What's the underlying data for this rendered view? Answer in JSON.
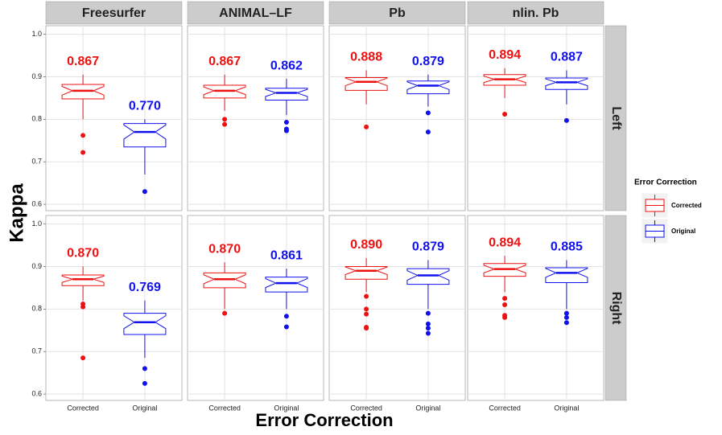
{
  "chart_data": {
    "type": "box",
    "x_label": "Error Correction",
    "y_label": "Kappa",
    "legend_title": "Error Correction",
    "categories": [
      "Corrected",
      "Original"
    ],
    "series": [
      {
        "name": "Corrected",
        "color": "#ee1111"
      },
      {
        "name": "Original",
        "color": "#1111ee"
      }
    ],
    "columns": [
      "Freesurfer",
      "ANIMAL–LF",
      "Pb",
      "nlin. Pb"
    ],
    "ylim": [
      0.585,
      1.02
    ],
    "yticks": [
      0.6,
      0.7,
      0.8,
      0.9,
      {
        "value": 1,
        "label": "1.0"
      }
    ],
    "grid": true,
    "rows": [
      {
        "name": "Left",
        "panels": [
          {
            "boxes": [
              {
                "low": 0.8,
                "q1": 0.848,
                "median": 0.867,
                "q3": 0.882,
                "high": 0.905,
                "outliers": [
                  0.762,
                  0.722
                ],
                "label": "0.867"
              },
              {
                "low": 0.67,
                "q1": 0.735,
                "median": 0.77,
                "q3": 0.79,
                "high": 0.8,
                "outliers": [
                  0.63
                ],
                "label": "0.770"
              }
            ]
          },
          {
            "boxes": [
              {
                "low": 0.82,
                "q1": 0.85,
                "median": 0.867,
                "q3": 0.88,
                "high": 0.905,
                "outliers": [
                  0.8,
                  0.788
                ],
                "label": "0.867"
              },
              {
                "low": 0.81,
                "q1": 0.845,
                "median": 0.862,
                "q3": 0.873,
                "high": 0.895,
                "outliers": [
                  0.793,
                  0.777,
                  0.773
                ],
                "label": "0.862"
              }
            ]
          },
          {
            "boxes": [
              {
                "low": 0.835,
                "q1": 0.868,
                "median": 0.888,
                "q3": 0.898,
                "high": 0.915,
                "outliers": [
                  0.782
                ],
                "label": "0.888"
              },
              {
                "low": 0.83,
                "q1": 0.86,
                "median": 0.879,
                "q3": 0.89,
                "high": 0.905,
                "outliers": [
                  0.815,
                  0.77
                ],
                "label": "0.879"
              }
            ]
          },
          {
            "boxes": [
              {
                "low": 0.85,
                "q1": 0.88,
                "median": 0.894,
                "q3": 0.905,
                "high": 0.92,
                "outliers": [
                  0.812
                ],
                "label": "0.894"
              },
              {
                "low": 0.835,
                "q1": 0.87,
                "median": 0.887,
                "q3": 0.897,
                "high": 0.915,
                "outliers": [
                  0.797
                ],
                "label": "0.887"
              }
            ]
          }
        ]
      },
      {
        "name": "Right",
        "panels": [
          {
            "boxes": [
              {
                "low": 0.82,
                "q1": 0.855,
                "median": 0.87,
                "q3": 0.88,
                "high": 0.9,
                "outliers": [
                  0.812,
                  0.805,
                  0.685
                ],
                "label": "0.870"
              },
              {
                "low": 0.685,
                "q1": 0.74,
                "median": 0.769,
                "q3": 0.79,
                "high": 0.82,
                "outliers": [
                  0.66,
                  0.625
                ],
                "label": "0.769"
              }
            ]
          },
          {
            "boxes": [
              {
                "low": 0.8,
                "q1": 0.85,
                "median": 0.87,
                "q3": 0.885,
                "high": 0.91,
                "outliers": [
                  0.79
                ],
                "label": "0.870"
              },
              {
                "low": 0.8,
                "q1": 0.84,
                "median": 0.861,
                "q3": 0.875,
                "high": 0.895,
                "outliers": [
                  0.783,
                  0.758
                ],
                "label": "0.861"
              }
            ]
          },
          {
            "boxes": [
              {
                "low": 0.84,
                "q1": 0.87,
                "median": 0.89,
                "q3": 0.9,
                "high": 0.92,
                "outliers": [
                  0.83,
                  0.8,
                  0.788,
                  0.757,
                  0.755
                ],
                "label": "0.890"
              },
              {
                "low": 0.8,
                "q1": 0.858,
                "median": 0.879,
                "q3": 0.895,
                "high": 0.915,
                "outliers": [
                  0.79,
                  0.765,
                  0.755,
                  0.743
                ],
                "label": "0.879"
              }
            ]
          },
          {
            "boxes": [
              {
                "low": 0.84,
                "q1": 0.877,
                "median": 0.894,
                "q3": 0.907,
                "high": 0.925,
                "outliers": [
                  0.825,
                  0.81,
                  0.785,
                  0.78
                ],
                "label": "0.894"
              },
              {
                "low": 0.8,
                "q1": 0.862,
                "median": 0.885,
                "q3": 0.897,
                "high": 0.915,
                "outliers": [
                  0.79,
                  0.78,
                  0.768
                ],
                "label": "0.885"
              }
            ]
          }
        ]
      }
    ]
  }
}
